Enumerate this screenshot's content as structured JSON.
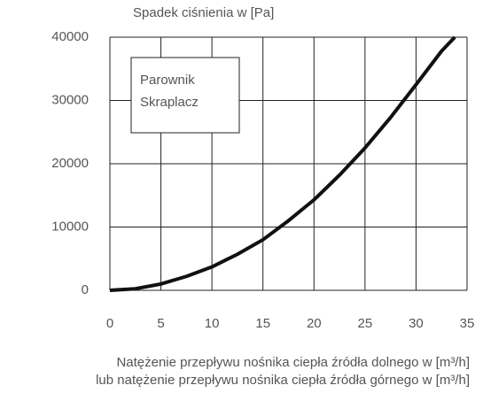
{
  "chart_data": {
    "type": "line",
    "title": "Spadek ciśnienia w [Pa]",
    "xlabel": [
      "Natężenie przepływu nośnika ciepła źródła dolnego w [m³/h]",
      "lub natężenie przepływu nośnika ciepła źródła górnego w [m³/h]"
    ],
    "legend": [
      "Parownik",
      "Skraplacz"
    ],
    "x": [
      0,
      2.5,
      5,
      7.5,
      10,
      12.5,
      15,
      17.5,
      20,
      22.5,
      25,
      27.5,
      30,
      32.5,
      33.8
    ],
    "series": [
      {
        "color": "#111111",
        "values": [
          0,
          250,
          1000,
          2200,
          3700,
          5700,
          8000,
          11000,
          14300,
          18200,
          22500,
          27300,
          32500,
          37800,
          40000
        ]
      }
    ],
    "xlim": [
      0,
      35
    ],
    "xticks": [
      0,
      5,
      10,
      15,
      20,
      25,
      30,
      35
    ],
    "ylim": [
      0,
      40000
    ],
    "yticks": [
      0,
      10000,
      20000,
      30000,
      40000
    ],
    "grid": true
  }
}
